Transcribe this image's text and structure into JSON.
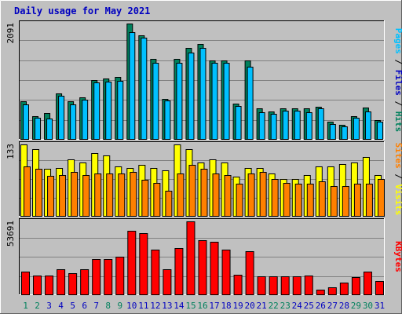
{
  "title": "Daily usage for May 2021",
  "colors": {
    "background": "#c0c0c0",
    "plot_bg": "#c0c0c0",
    "hits": "#00805c",
    "files": "#00c0ff",
    "sites": "#ff8000",
    "visits": "#ffff00",
    "kbytes": "#ff0000",
    "title": "#0000c0",
    "weekend_label": "#00805c",
    "weekday_label": "#0000c0"
  },
  "chart_data": [
    {
      "type": "bar",
      "panel": "hits-files-pages",
      "y_max_label": "2091",
      "ylim": [
        0,
        2091
      ],
      "categories": [
        "1",
        "2",
        "3",
        "4",
        "5",
        "6",
        "7",
        "8",
        "9",
        "10",
        "11",
        "12",
        "13",
        "14",
        "15",
        "16",
        "17",
        "18",
        "19",
        "20",
        "21",
        "22",
        "23",
        "24",
        "25",
        "26",
        "27",
        "28",
        "29",
        "30",
        "31"
      ],
      "series": [
        {
          "name": "Hits",
          "values": [
            690,
            420,
            480,
            830,
            690,
            760,
            1070,
            1100,
            1130,
            2091,
            1880,
            1450,
            740,
            1450,
            1650,
            1720,
            1420,
            1420,
            650,
            1420,
            560,
            510,
            560,
            560,
            560,
            600,
            330,
            270,
            430,
            580,
            350
          ]
        },
        {
          "name": "Files",
          "values": [
            640,
            390,
            380,
            790,
            630,
            720,
            1030,
            1040,
            1060,
            1940,
            1840,
            1380,
            710,
            1380,
            1570,
            1650,
            1380,
            1380,
            610,
            1310,
            500,
            470,
            520,
            520,
            500,
            560,
            280,
            240,
            400,
            510,
            320
          ]
        },
        {
          "name": "Pages",
          "values": [
            0,
            0,
            0,
            0,
            0,
            0,
            0,
            0,
            0,
            0,
            0,
            0,
            0,
            0,
            0,
            0,
            0,
            0,
            0,
            0,
            0,
            0,
            0,
            0,
            0,
            0,
            0,
            0,
            0,
            0,
            0
          ]
        }
      ],
      "axis_title": [
        "Pages",
        " / ",
        "Files",
        " / ",
        "Hits"
      ]
    },
    {
      "type": "bar",
      "panel": "visits-sites",
      "y_max_label": "133",
      "ylim": [
        0,
        133
      ],
      "categories": [
        "1",
        "2",
        "3",
        "4",
        "5",
        "6",
        "7",
        "8",
        "9",
        "10",
        "11",
        "12",
        "13",
        "14",
        "15",
        "16",
        "17",
        "18",
        "19",
        "20",
        "21",
        "22",
        "23",
        "24",
        "25",
        "26",
        "27",
        "28",
        "29",
        "30",
        "31"
      ],
      "series": [
        {
          "name": "Visits",
          "values": [
            133,
            125,
            88,
            90,
            105,
            100,
            117,
            113,
            92,
            90,
            95,
            90,
            85,
            133,
            125,
            100,
            105,
            100,
            74,
            90,
            90,
            80,
            70,
            70,
            77,
            92,
            92,
            97,
            100,
            110,
            76
          ]
        },
        {
          "name": "Sites",
          "values": [
            92,
            88,
            75,
            76,
            82,
            77,
            80,
            80,
            80,
            82,
            68,
            62,
            48,
            80,
            95,
            88,
            80,
            77,
            60,
            80,
            82,
            70,
            62,
            60,
            60,
            65,
            57,
            57,
            60,
            60,
            70
          ]
        }
      ],
      "axis_title": [
        "Sites",
        " / ",
        "Visits"
      ]
    },
    {
      "type": "bar",
      "panel": "kbytes",
      "y_max_label": "53691",
      "ylim": [
        0,
        53691
      ],
      "categories": [
        "1",
        "2",
        "3",
        "4",
        "5",
        "6",
        "7",
        "8",
        "9",
        "10",
        "11",
        "12",
        "13",
        "14",
        "15",
        "16",
        "17",
        "18",
        "19",
        "20",
        "21",
        "22",
        "23",
        "24",
        "25",
        "26",
        "27",
        "28",
        "29",
        "30",
        "31"
      ],
      "series": [
        {
          "name": "KBytes",
          "values": [
            17000,
            14500,
            14000,
            19000,
            16000,
            19000,
            26000,
            26500,
            28000,
            47000,
            45000,
            33000,
            19000,
            34000,
            53691,
            40000,
            39000,
            33000,
            15000,
            32000,
            13500,
            13500,
            13500,
            13500,
            14500,
            3800,
            5500,
            9000,
            13000,
            17000,
            10000
          ]
        }
      ],
      "axis_title": [
        "KBytes"
      ]
    }
  ],
  "x_labels": [
    {
      "text": "1",
      "weekend": true
    },
    {
      "text": "2",
      "weekend": true
    },
    {
      "text": "3",
      "weekend": false
    },
    {
      "text": "4",
      "weekend": false
    },
    {
      "text": "5",
      "weekend": false
    },
    {
      "text": "6",
      "weekend": false
    },
    {
      "text": "7",
      "weekend": false
    },
    {
      "text": "8",
      "weekend": true
    },
    {
      "text": "9",
      "weekend": true
    },
    {
      "text": "10",
      "weekend": false
    },
    {
      "text": "11",
      "weekend": false
    },
    {
      "text": "12",
      "weekend": false
    },
    {
      "text": "13",
      "weekend": false
    },
    {
      "text": "14",
      "weekend": false
    },
    {
      "text": "15",
      "weekend": true
    },
    {
      "text": "16",
      "weekend": true
    },
    {
      "text": "17",
      "weekend": false
    },
    {
      "text": "18",
      "weekend": false
    },
    {
      "text": "19",
      "weekend": false
    },
    {
      "text": "20",
      "weekend": false
    },
    {
      "text": "21",
      "weekend": false
    },
    {
      "text": "22",
      "weekend": true
    },
    {
      "text": "23",
      "weekend": true
    },
    {
      "text": "24",
      "weekend": false
    },
    {
      "text": "25",
      "weekend": false
    },
    {
      "text": "26",
      "weekend": false
    },
    {
      "text": "27",
      "weekend": false
    },
    {
      "text": "28",
      "weekend": false
    },
    {
      "text": "29",
      "weekend": true
    },
    {
      "text": "30",
      "weekend": true
    },
    {
      "text": "31",
      "weekend": false
    }
  ]
}
